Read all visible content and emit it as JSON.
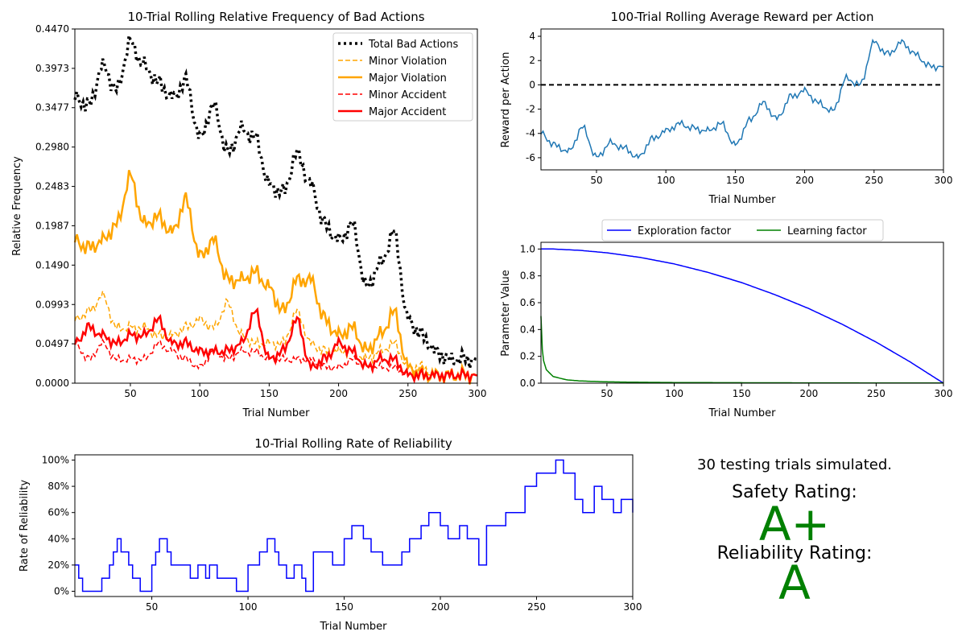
{
  "colors": {
    "total_bad": "#000000",
    "minor_violation": "#ffa500",
    "major_violation": "#ffa500",
    "minor_accident": "#ff0000",
    "major_accident": "#ff0000",
    "reward": "#1f77b4",
    "exploration": "#0000ff",
    "learning": "#008000",
    "reliability": "#0000ff",
    "grade": "#008000"
  },
  "summary": {
    "trials_text": "30 testing trials simulated.",
    "safety_label": "Safety Rating:",
    "safety_grade": "A+",
    "reliability_label": "Reliability Rating:",
    "reliability_grade": "A"
  },
  "chart_data": [
    {
      "id": "bad_actions",
      "type": "line",
      "title": "10-Trial Rolling Relative Frequency of Bad Actions",
      "xlabel": "Trial Number",
      "ylabel": "Relative Frequency",
      "xlim": [
        10,
        300
      ],
      "ylim": [
        0,
        0.447
      ],
      "xticks": [
        50,
        100,
        150,
        200,
        250,
        300
      ],
      "yticks": [
        "0.0000",
        "0.0497",
        "0.0993",
        "0.1490",
        "0.1987",
        "0.2483",
        "0.2980",
        "0.3477",
        "0.3973",
        "0.4470"
      ],
      "legend_position": "top-right",
      "x": [
        10,
        20,
        30,
        40,
        50,
        60,
        70,
        80,
        90,
        100,
        110,
        120,
        130,
        140,
        150,
        160,
        170,
        180,
        190,
        200,
        210,
        220,
        230,
        240,
        250,
        260,
        270,
        280,
        290,
        300
      ],
      "series": [
        {
          "name": "Total Bad Actions",
          "style": "dotted",
          "values": [
            0.36,
            0.35,
            0.4,
            0.37,
            0.43,
            0.4,
            0.38,
            0.36,
            0.38,
            0.31,
            0.35,
            0.29,
            0.32,
            0.31,
            0.25,
            0.24,
            0.29,
            0.25,
            0.2,
            0.18,
            0.2,
            0.12,
            0.15,
            0.19,
            0.08,
            0.06,
            0.04,
            0.03,
            0.03,
            0.03
          ]
        },
        {
          "name": "Minor Violation",
          "style": "dashed",
          "values": [
            0.08,
            0.09,
            0.11,
            0.07,
            0.07,
            0.07,
            0.06,
            0.06,
            0.07,
            0.08,
            0.07,
            0.1,
            0.06,
            0.05,
            0.05,
            0.05,
            0.09,
            0.05,
            0.04,
            0.04,
            0.04,
            0.03,
            0.04,
            0.05,
            0.02,
            0.02,
            0.01,
            0.01,
            0.01,
            0.01
          ]
        },
        {
          "name": "Major Violation",
          "style": "solid",
          "values": [
            0.18,
            0.17,
            0.18,
            0.2,
            0.26,
            0.2,
            0.21,
            0.19,
            0.23,
            0.16,
            0.18,
            0.13,
            0.13,
            0.14,
            0.12,
            0.09,
            0.13,
            0.13,
            0.08,
            0.06,
            0.07,
            0.04,
            0.06,
            0.09,
            0.02,
            0.01,
            0.01,
            0.01,
            0.01,
            0.01
          ]
        },
        {
          "name": "Minor Accident",
          "style": "dashed",
          "values": [
            0.05,
            0.03,
            0.05,
            0.03,
            0.03,
            0.03,
            0.05,
            0.04,
            0.03,
            0.02,
            0.04,
            0.03,
            0.04,
            0.04,
            0.03,
            0.03,
            0.03,
            0.03,
            0.02,
            0.02,
            0.03,
            0.02,
            0.02,
            0.02,
            0.01,
            0.01,
            0.01,
            0.01,
            0.01,
            0.01
          ]
        },
        {
          "name": "Major Accident",
          "style": "solid",
          "values": [
            0.05,
            0.07,
            0.06,
            0.05,
            0.06,
            0.06,
            0.08,
            0.05,
            0.05,
            0.04,
            0.04,
            0.04,
            0.05,
            0.09,
            0.03,
            0.04,
            0.08,
            0.02,
            0.03,
            0.05,
            0.04,
            0.02,
            0.03,
            0.03,
            0.01,
            0.01,
            0.01,
            0.01,
            0.01,
            0.01
          ]
        }
      ]
    },
    {
      "id": "reward",
      "type": "line",
      "title": "100-Trial Rolling Average Reward per Action",
      "xlabel": "Trial Number",
      "ylabel": "Reward per Action",
      "xlim": [
        10,
        300
      ],
      "ylim": [
        -7,
        4.6
      ],
      "xticks": [
        50,
        100,
        150,
        200,
        250,
        300
      ],
      "yticks": [
        -6,
        -4,
        -2,
        0,
        2,
        4
      ],
      "reference_line": 0,
      "x": [
        10,
        20,
        30,
        40,
        50,
        60,
        70,
        80,
        90,
        100,
        110,
        120,
        130,
        140,
        150,
        160,
        170,
        180,
        190,
        200,
        210,
        220,
        230,
        240,
        250,
        260,
        270,
        280,
        290,
        300
      ],
      "series": [
        {
          "name": "",
          "values": [
            -4.0,
            -5.0,
            -5.5,
            -3.5,
            -6.0,
            -4.8,
            -5.2,
            -6.0,
            -4.5,
            -3.8,
            -3.2,
            -3.6,
            -3.8,
            -3.2,
            -5.0,
            -3.0,
            -1.5,
            -2.8,
            -1.0,
            -0.5,
            -1.5,
            -2.2,
            0.5,
            0.0,
            3.5,
            2.5,
            3.5,
            2.5,
            1.5,
            1.5
          ]
        }
      ]
    },
    {
      "id": "parameters",
      "type": "line",
      "title": "",
      "xlabel": "Trial Number",
      "ylabel": "Parameter Value",
      "xlim": [
        1,
        300
      ],
      "ylim": [
        0,
        1.05
      ],
      "xticks": [
        50,
        100,
        150,
        200,
        250,
        300
      ],
      "yticks": [
        "0.0",
        "0.2",
        "0.4",
        "0.6",
        "0.8",
        "1.0"
      ],
      "legend_position": "top-center",
      "x": [
        1,
        2,
        3,
        5,
        10,
        20,
        30,
        50,
        75,
        100,
        125,
        150,
        175,
        200,
        225,
        250,
        275,
        300
      ],
      "series": [
        {
          "name": "Exploration factor",
          "values": [
            1.0,
            1.0,
            1.0,
            1.0,
            1.0,
            0.995,
            0.99,
            0.972,
            0.937,
            0.889,
            0.826,
            0.75,
            0.659,
            0.556,
            0.438,
            0.306,
            0.16,
            0.0
          ]
        },
        {
          "name": "Learning factor",
          "values": [
            0.5,
            0.25,
            0.167,
            0.1,
            0.05,
            0.025,
            0.0167,
            0.01,
            0.0067,
            0.005,
            0.004,
            0.0033,
            0.0029,
            0.0025,
            0.0022,
            0.002,
            0.0018,
            0.0017
          ]
        }
      ]
    },
    {
      "id": "reliability",
      "type": "line",
      "title": "10-Trial Rolling Rate of Reliability",
      "xlabel": "Trial Number",
      "ylabel": "Rate of Reliability",
      "xlim": [
        10,
        300
      ],
      "ylim": [
        -0.04,
        1.04
      ],
      "xticks": [
        50,
        100,
        150,
        200,
        250,
        300
      ],
      "yticks": [
        "0%",
        "20%",
        "40%",
        "60%",
        "80%",
        "100%"
      ],
      "x": [
        10,
        12,
        14,
        20,
        24,
        28,
        30,
        32,
        34,
        38,
        40,
        44,
        50,
        52,
        54,
        58,
        60,
        64,
        70,
        74,
        78,
        80,
        84,
        90,
        94,
        100,
        106,
        110,
        114,
        116,
        120,
        124,
        128,
        130,
        134,
        140,
        144,
        150,
        154,
        160,
        164,
        170,
        174,
        180,
        184,
        190,
        194,
        200,
        204,
        210,
        214,
        220,
        224,
        230,
        234,
        240,
        244,
        250,
        254,
        260,
        264,
        270,
        274,
        280,
        284,
        290,
        294,
        300
      ],
      "series": [
        {
          "name": "",
          "values": [
            0.2,
            0.1,
            0.0,
            0.0,
            0.1,
            0.2,
            0.3,
            0.4,
            0.3,
            0.2,
            0.1,
            0.0,
            0.2,
            0.3,
            0.4,
            0.3,
            0.2,
            0.2,
            0.1,
            0.2,
            0.1,
            0.2,
            0.1,
            0.1,
            0.0,
            0.2,
            0.3,
            0.4,
            0.3,
            0.2,
            0.1,
            0.2,
            0.1,
            0.0,
            0.3,
            0.3,
            0.2,
            0.4,
            0.5,
            0.4,
            0.3,
            0.2,
            0.2,
            0.3,
            0.4,
            0.5,
            0.6,
            0.5,
            0.4,
            0.5,
            0.4,
            0.2,
            0.5,
            0.5,
            0.6,
            0.6,
            0.8,
            0.9,
            0.9,
            1.0,
            0.9,
            0.7,
            0.6,
            0.8,
            0.7,
            0.6,
            0.7,
            0.6
          ]
        }
      ]
    }
  ]
}
